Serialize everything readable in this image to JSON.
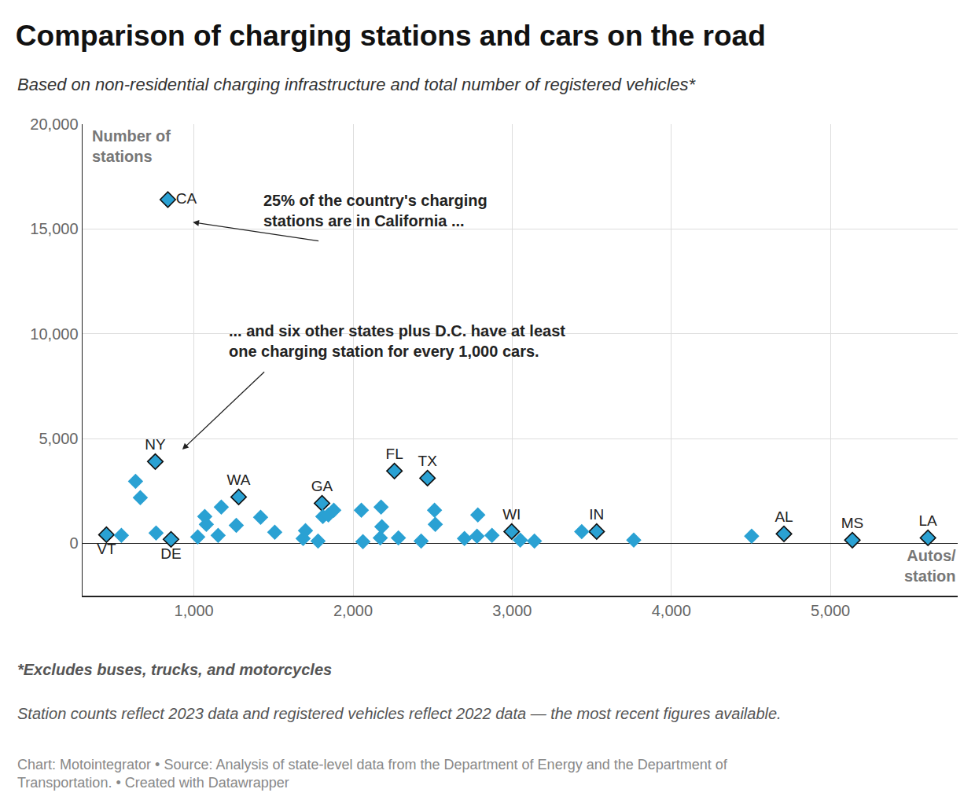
{
  "chart_data": {
    "type": "scatter",
    "title": "Comparison of charging stations and cars on the road",
    "subtitle": "Based on non-residential charging infrastructure and total number of registered vehicles*",
    "x_label": "Autos/\nstation",
    "y_label": "Number of\nstations",
    "annotations": [
      "25% of the country's charging\nstations are in California ...",
      "... and six other states plus D.C. have at least\none charging station for every 1,000 cars."
    ],
    "notes": [
      "*Excludes buses, trucks, and motorcycles",
      "Station counts reflect 2023 data and registered vehicles reflect 2022 data — the most recent figures available.",
      "Chart: Motointegrator • Source: Analysis of state-level data from the Department of Energy and the Department of\nTransportation. • Created with Datawrapper"
    ],
    "color": "#2aa1d3",
    "marker": "diamond",
    "grid": true,
    "x": [
      836,
      757,
      1281,
      1805,
      2260,
      2468,
      2997,
      3531,
      4708,
      5138,
      5613,
      450,
      856,
      544,
      633,
      663,
      762,
      1024,
      1068,
      1078,
      1152,
      1172,
      1266,
      1419,
      1508,
      1686,
      1701,
      1780,
      1810,
      1845,
      1879,
      2052,
      2062,
      2176,
      2181,
      2171,
      2285,
      2428,
      2512,
      2517,
      2700,
      2779,
      2784,
      2873,
      3051,
      3140,
      3437,
      3764,
      4505
    ],
    "values": [
      16400,
      3900,
      2210,
      1910,
      3450,
      3110,
      560,
      560,
      450,
      150,
      260,
      410,
      190,
      380,
      2960,
      2180,
      490,
      300,
      1280,
      900,
      380,
      1730,
      860,
      1240,
      530,
      230,
      600,
      110,
      1280,
      1350,
      1580,
      1580,
      80,
      1730,
      790,
      260,
      260,
      110,
      1580,
      900,
      230,
      340,
      1350,
      380,
      150,
      110,
      560,
      150,
      340
    ],
    "labels": [
      "CA",
      "NY",
      "WA",
      "GA",
      "FL",
      "TX",
      "WI",
      "IN",
      "AL",
      "MS",
      "LA",
      "VT",
      "DE",
      null,
      null,
      null,
      null,
      null,
      null,
      null,
      null,
      null,
      null,
      null,
      null,
      null,
      null,
      null,
      null,
      null,
      null,
      null,
      null,
      null,
      null,
      null,
      null,
      null,
      null,
      null,
      null,
      null,
      null,
      null,
      null,
      null,
      null,
      null,
      null
    ],
    "xlim": [
      300,
      5800
    ],
    "ylim": [
      -2500,
      20000
    ],
    "xticks": [
      {
        "value": 1000,
        "label": "1,000"
      },
      {
        "value": 2000,
        "label": "2,000"
      },
      {
        "value": 3000,
        "label": "3,000"
      },
      {
        "value": 4000,
        "label": "4,000"
      },
      {
        "value": 5000,
        "label": "5,000"
      }
    ],
    "yticks": [
      0,
      {
        "value": 5000,
        "label": "5,000"
      },
      {
        "value": 10000,
        "label": "10,000"
      },
      {
        "value": 15000,
        "label": "15,000"
      },
      {
        "value": 20000,
        "label": "20,000"
      }
    ]
  }
}
